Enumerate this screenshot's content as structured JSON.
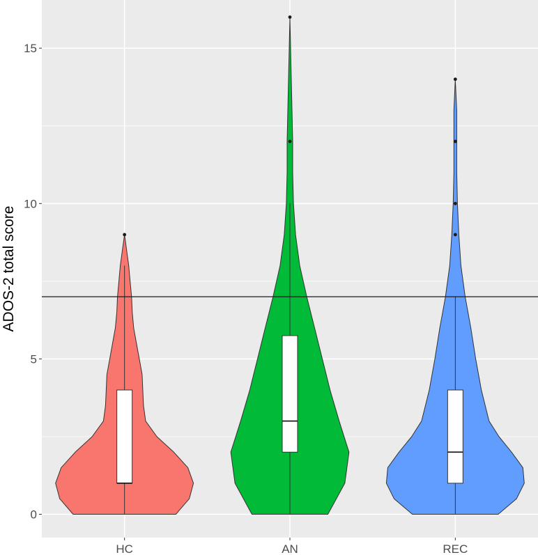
{
  "chart_data": {
    "type": "violin",
    "title": "",
    "xlabel": "",
    "ylabel": "ADOS-2 total score",
    "ylim": [
      -0.75,
      16.55
    ],
    "yticks": [
      0,
      5,
      10,
      15
    ],
    "ytick_labels": [
      "0",
      "5",
      "10",
      "15"
    ],
    "categories": [
      "HC",
      "AN",
      "REC"
    ],
    "reference_line": 7,
    "grid": true,
    "legend": "none",
    "colors": {
      "HC": "#F8766D",
      "AN": "#00BA38",
      "REC": "#619CFF",
      "panel": "#EBEBEB",
      "grid": "#FFFFFF"
    },
    "groups": [
      {
        "name": "HC",
        "box": {
          "q1": 1,
          "median": 1,
          "q3": 4,
          "whisker_low": 0,
          "whisker_high": 8
        },
        "outliers": [
          9
        ],
        "density": [
          [
            0,
            0.73
          ],
          [
            0.5,
            0.92
          ],
          [
            1,
            0.98
          ],
          [
            1.5,
            0.9
          ],
          [
            2,
            0.7
          ],
          [
            2.5,
            0.46
          ],
          [
            3,
            0.3
          ],
          [
            3.5,
            0.27
          ],
          [
            4,
            0.26
          ],
          [
            4.5,
            0.25
          ],
          [
            5,
            0.21
          ],
          [
            5.5,
            0.17
          ],
          [
            6,
            0.13
          ],
          [
            6.5,
            0.11
          ],
          [
            7,
            0.1
          ],
          [
            7.5,
            0.08
          ],
          [
            8,
            0.06
          ],
          [
            8.5,
            0.03
          ],
          [
            9,
            0.0
          ]
        ]
      },
      {
        "name": "AN",
        "box": {
          "q1": 2,
          "median": 3,
          "q3": 5.75,
          "whisker_low": 0,
          "whisker_high": 10
        },
        "outliers": [
          12,
          16
        ],
        "density": [
          [
            0,
            0.54
          ],
          [
            1,
            0.78
          ],
          [
            2,
            0.84
          ],
          [
            3,
            0.7
          ],
          [
            4,
            0.57
          ],
          [
            5,
            0.46
          ],
          [
            6,
            0.35
          ],
          [
            7,
            0.24
          ],
          [
            8,
            0.14
          ],
          [
            9,
            0.08
          ],
          [
            10,
            0.05
          ],
          [
            11,
            0.04
          ],
          [
            12,
            0.04
          ],
          [
            13,
            0.03
          ],
          [
            14,
            0.02
          ],
          [
            15,
            0.01
          ],
          [
            16,
            0.0
          ]
        ]
      },
      {
        "name": "REC",
        "box": {
          "q1": 1,
          "median": 2,
          "q3": 4,
          "whisker_low": 0,
          "whisker_high": 7
        },
        "outliers": [
          9,
          10,
          12,
          14
        ],
        "density": [
          [
            0,
            0.61
          ],
          [
            0.5,
            0.87
          ],
          [
            1,
            0.98
          ],
          [
            1.5,
            0.96
          ],
          [
            2,
            0.8
          ],
          [
            2.5,
            0.62
          ],
          [
            3,
            0.48
          ],
          [
            4,
            0.37
          ],
          [
            5,
            0.29
          ],
          [
            6,
            0.22
          ],
          [
            7,
            0.14
          ],
          [
            8,
            0.08
          ],
          [
            9,
            0.05
          ],
          [
            10,
            0.03
          ],
          [
            11,
            0.02
          ],
          [
            12,
            0.02
          ],
          [
            13,
            0.02
          ],
          [
            14,
            0.0
          ]
        ]
      }
    ]
  }
}
